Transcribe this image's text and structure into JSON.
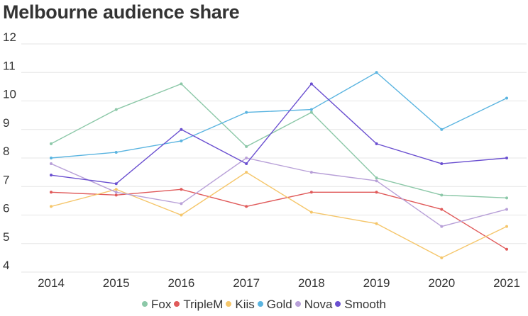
{
  "chart_data": {
    "type": "line",
    "title": "Melbourne audience share",
    "xlabel": "",
    "ylabel": "",
    "categories": [
      "2014",
      "2015",
      "2016",
      "2017",
      "2018",
      "2019",
      "2020",
      "2021"
    ],
    "ylim": [
      4,
      12
    ],
    "yticks": [
      "12",
      "11",
      "10",
      "9",
      "8",
      "7",
      "6",
      "5",
      "4"
    ],
    "grid": true,
    "legend": "bottom",
    "series": [
      {
        "name": "Fox",
        "color": "#8cc8a8",
        "values": [
          8.5,
          9.7,
          10.6,
          8.4,
          9.6,
          7.3,
          6.7,
          6.6
        ]
      },
      {
        "name": "TripleM",
        "color": "#e05a5a",
        "values": [
          6.8,
          6.7,
          6.9,
          6.3,
          6.8,
          6.8,
          6.2,
          4.8
        ]
      },
      {
        "name": "Kiis",
        "color": "#f5c66a",
        "values": [
          6.3,
          6.9,
          6.0,
          7.5,
          6.1,
          5.7,
          4.5,
          5.6
        ]
      },
      {
        "name": "Gold",
        "color": "#5ab4e0",
        "values": [
          8.0,
          8.2,
          8.6,
          9.6,
          9.7,
          11.0,
          9.0,
          10.1
        ]
      },
      {
        "name": "Nova",
        "color": "#b8a0d8",
        "values": [
          7.8,
          6.8,
          6.4,
          8.0,
          7.5,
          7.2,
          5.6,
          6.2
        ]
      },
      {
        "name": "Smooth",
        "color": "#6a4fd0",
        "values": [
          7.4,
          7.1,
          9.0,
          7.8,
          10.6,
          8.5,
          7.8,
          8.0
        ]
      }
    ]
  }
}
